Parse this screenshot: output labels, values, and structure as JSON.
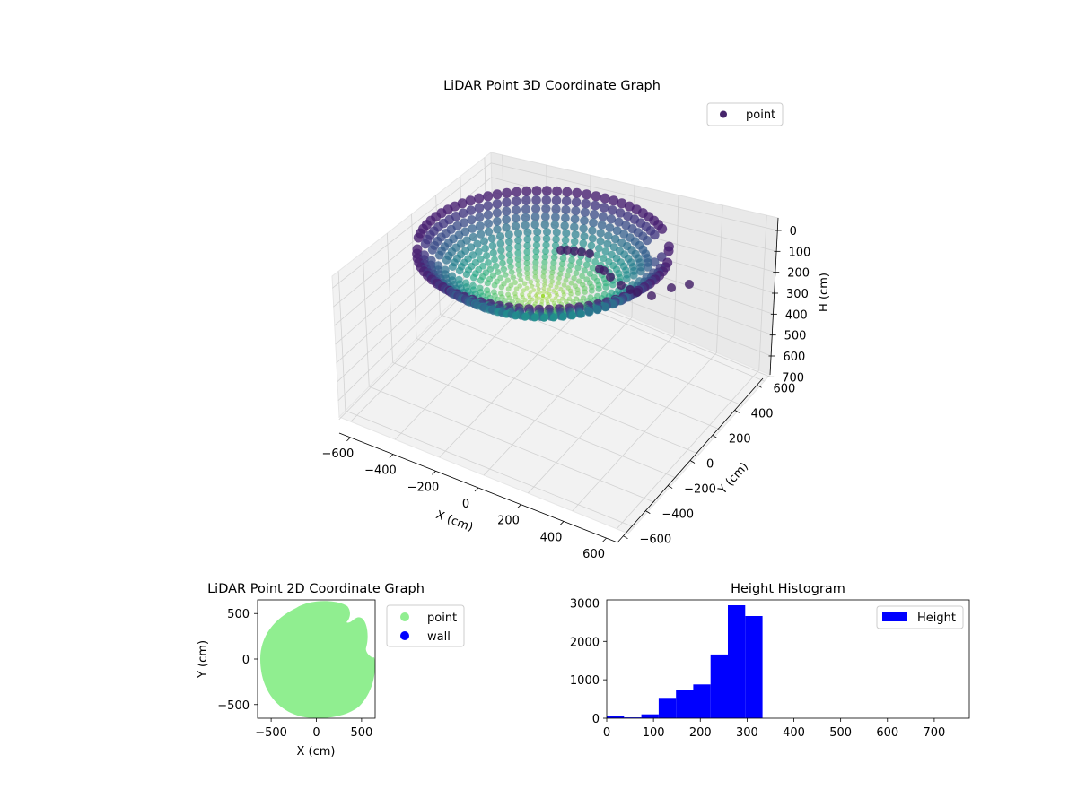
{
  "figure": {
    "background": "#ffffff"
  },
  "chart_data": [
    {
      "type": "scatter",
      "projection": "3d",
      "title": "LiDAR Point 3D Coordinate Graph",
      "xlabel": "X (cm)",
      "ylabel": "Y (cm)",
      "zlabel": "H (cm)",
      "xticks": [
        "−600",
        "−400",
        "−200",
        "0",
        "200",
        "400",
        "600"
      ],
      "yticks": [
        "−600",
        "−400",
        "−200",
        "0",
        "200",
        "400",
        "600"
      ],
      "zticks": [
        "0",
        "100",
        "200",
        "300",
        "400",
        "500",
        "600",
        "700"
      ],
      "xlim": [
        -650,
        650
      ],
      "ylim": [
        -650,
        650
      ],
      "zlim": [
        750,
        0
      ],
      "colormap": "viridis",
      "grid": true,
      "legend": {
        "position": "top-right",
        "entries": [
          {
            "name": "point",
            "color": "#46256b"
          }
        ]
      },
      "series": [
        {
          "name": "point",
          "description_of_shape": "dish-shaped point cloud: floor near H≈300 (yellow-green), rim rising to H≈50–100 (dark blue/purple)"
        }
      ]
    },
    {
      "type": "scatter",
      "title": "LiDAR Point 2D Coordinate Graph",
      "xlabel": "X (cm)",
      "ylabel": "Y (cm)",
      "xticks": [
        "−500",
        "0",
        "500"
      ],
      "yticks": [
        "−500",
        "0",
        "500"
      ],
      "xlim": [
        -650,
        650
      ],
      "ylim": [
        -650,
        650
      ],
      "legend": {
        "position": "outside-right",
        "entries": [
          {
            "name": "point",
            "color": "#90ee90"
          },
          {
            "name": "wall",
            "color": "#0000ff"
          }
        ]
      },
      "series": [
        {
          "name": "point",
          "color": "#90ee90",
          "description_of_shape": "filled disc of radius ≈640 cm centered near (0,0) with notches on right side"
        },
        {
          "name": "wall",
          "color": "#0000ff",
          "values": []
        }
      ]
    },
    {
      "type": "bar",
      "subtype": "histogram",
      "title": "Height Histogram",
      "xticks": [
        "0",
        "100",
        "200",
        "300",
        "400",
        "500",
        "600",
        "700"
      ],
      "yticks": [
        "0",
        "1000",
        "2000",
        "3000"
      ],
      "xlim": [
        0,
        775
      ],
      "ylim": [
        0,
        3080
      ],
      "color": "#0000ff",
      "legend": {
        "position": "top-right",
        "entries": [
          {
            "name": "Height",
            "color": "#0000ff"
          }
        ]
      },
      "bin_edges": [
        0,
        37,
        74,
        111,
        148,
        185,
        222,
        259,
        296,
        333,
        370,
        407,
        444,
        481,
        518,
        555,
        592,
        629,
        666,
        703,
        740,
        777
      ],
      "values": [
        50,
        20,
        100,
        530,
        740,
        880,
        1660,
        2940,
        2660,
        0,
        0,
        0,
        0,
        0,
        0,
        0,
        0,
        0,
        0,
        0,
        0
      ]
    }
  ]
}
